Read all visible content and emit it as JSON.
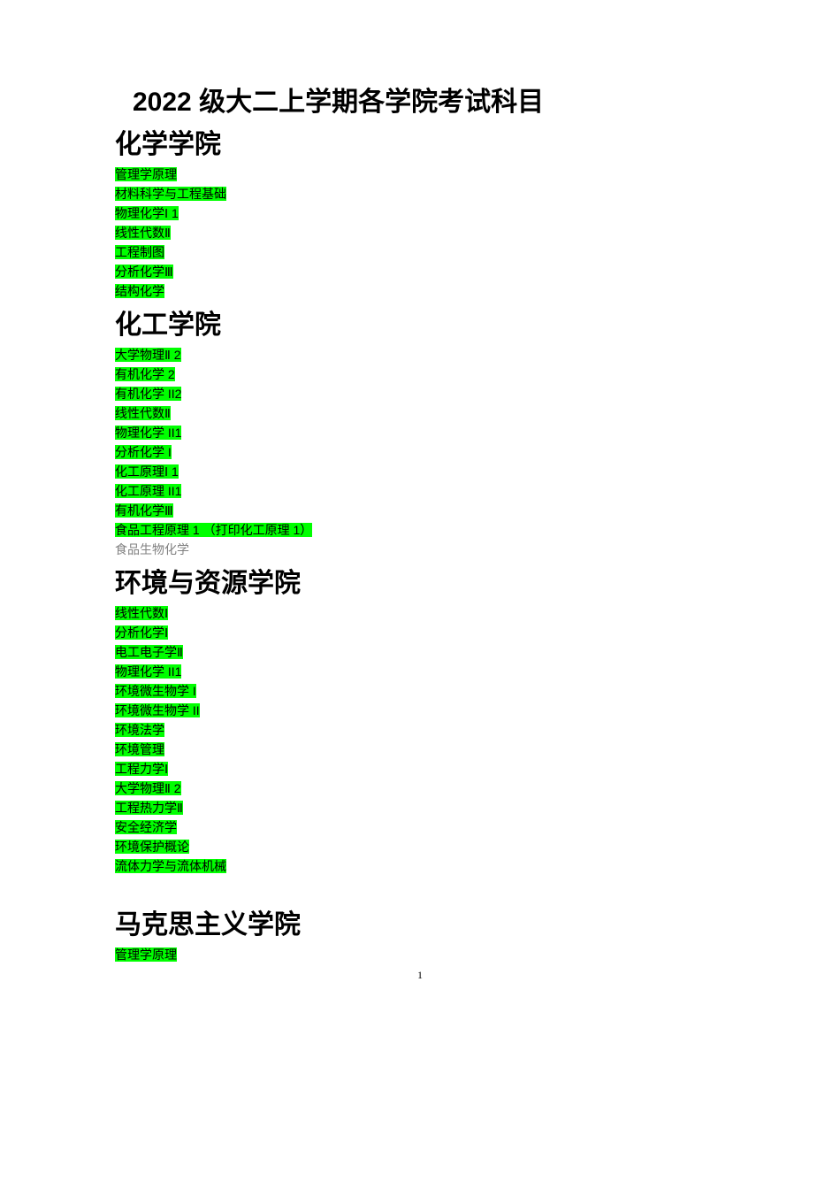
{
  "title": "2022 级大二上学期各学院考试科目",
  "pageNumber": "1",
  "sections": [
    {
      "name": "化学学院",
      "extraGap": false,
      "courses": [
        {
          "text": "管理学原理",
          "highlighted": true
        },
        {
          "text": "材料科学与工程基础",
          "highlighted": true
        },
        {
          "text": "物理化学Ⅰ 1",
          "highlighted": true
        },
        {
          "text": "线性代数Ⅱ",
          "highlighted": true
        },
        {
          "text": "工程制图",
          "highlighted": true
        },
        {
          "text": "分析化学Ⅲ",
          "highlighted": true
        },
        {
          "text": "结构化学",
          "highlighted": true
        }
      ]
    },
    {
      "name": "化工学院",
      "extraGap": false,
      "courses": [
        {
          "text": "大学物理Ⅱ 2",
          "highlighted": true
        },
        {
          "text": "有机化学 2",
          "highlighted": true
        },
        {
          "text": "有机化学 II2",
          "highlighted": true
        },
        {
          "text": "线性代数Ⅱ",
          "highlighted": true
        },
        {
          "text": "物理化学 II1",
          "highlighted": true
        },
        {
          "text": "分析化学 I",
          "highlighted": true
        },
        {
          "text": "化工原理Ⅰ 1",
          "highlighted": true
        },
        {
          "text": "化工原理 II1",
          "highlighted": true
        },
        {
          "text": "有机化学Ⅲ",
          "highlighted": true
        },
        {
          "text": "食品工程原理 1 （打印化工原理 1）",
          "highlighted": true
        },
        {
          "text": "食品生物化学",
          "highlighted": false
        }
      ]
    },
    {
      "name": "环境与资源学院",
      "extraGap": false,
      "courses": [
        {
          "text": "线性代数Ⅰ",
          "highlighted": true
        },
        {
          "text": "分析化学Ⅰ",
          "highlighted": true
        },
        {
          "text": "电工电子学Ⅱ",
          "highlighted": true
        },
        {
          "text": "物理化学 II1",
          "highlighted": true
        },
        {
          "text": "环境微生物学 I",
          "highlighted": true
        },
        {
          "text": "环境微生物学 II",
          "highlighted": true
        },
        {
          "text": "环境法学",
          "highlighted": true
        },
        {
          "text": "环境管理",
          "highlighted": true
        },
        {
          "text": "工程力学Ⅰ",
          "highlighted": true
        },
        {
          "text": "大学物理Ⅱ 2",
          "highlighted": true
        },
        {
          "text": "工程热力学Ⅱ",
          "highlighted": true
        },
        {
          "text": "安全经济学",
          "highlighted": true
        },
        {
          "text": "环境保护概论",
          "highlighted": true
        },
        {
          "text": "流体力学与流体机械",
          "highlighted": true
        }
      ]
    },
    {
      "name": "马克思主义学院",
      "extraGap": true,
      "courses": [
        {
          "text": "管理学原理",
          "highlighted": true
        }
      ]
    }
  ]
}
